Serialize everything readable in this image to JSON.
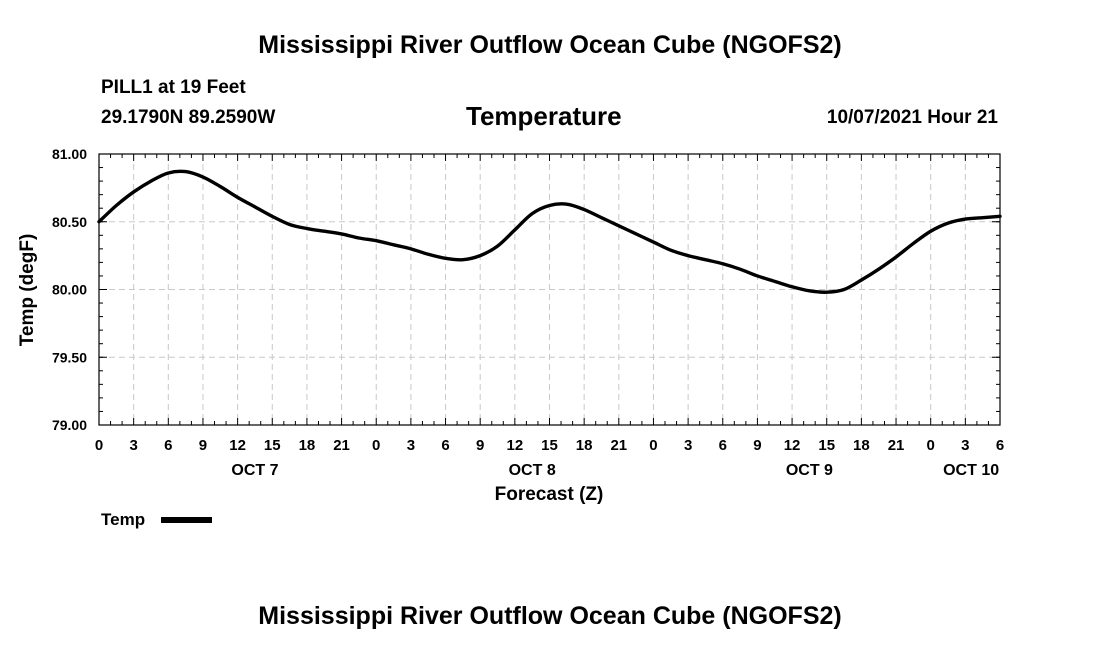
{
  "page": {
    "main_title": "Mississippi River Outflow Ocean Cube (NGOFS2)",
    "footer_title": "Mississippi River Outflow Ocean Cube (NGOFS2)",
    "station": "PILL1 at 19 Feet",
    "coords": "29.1790N  89.2590W",
    "datetime": "10/07/2021 Hour 21",
    "legend": {
      "label": "Temp"
    }
  },
  "colors": {
    "line": "#000000",
    "grid": "#c8c8c8",
    "axis": "#000000"
  },
  "chart_data": {
    "type": "line",
    "title": "Temperature",
    "xlabel": "Forecast (Z)",
    "ylabel": "Temp (degF)",
    "ylim": [
      79.0,
      81.0
    ],
    "yticks": [
      "79.00",
      "79.50",
      "80.00",
      "80.50",
      "81.00"
    ],
    "xlim": [
      0,
      78
    ],
    "xtick_labels": [
      "0",
      "3",
      "6",
      "9",
      "12",
      "15",
      "18",
      "21",
      "0",
      "3",
      "6",
      "9",
      "12",
      "15",
      "18",
      "21",
      "0",
      "3",
      "6",
      "9",
      "12",
      "15",
      "18",
      "21",
      "0",
      "3",
      "6"
    ],
    "day_labels": [
      {
        "label": "OCT 7",
        "hour": 13.5
      },
      {
        "label": "OCT 8",
        "hour": 37.5
      },
      {
        "label": "OCT 9",
        "hour": 61.5
      },
      {
        "label": "OCT 10",
        "hour": 75.5
      }
    ],
    "grid": true,
    "legend_position": "bottom-left",
    "series": [
      {
        "name": "Temp",
        "x": [
          0,
          1.5,
          3,
          4.5,
          6,
          7.5,
          9,
          10.5,
          12,
          13.5,
          15,
          16.5,
          18,
          19.5,
          21,
          22.5,
          24,
          25.5,
          27,
          28.5,
          30,
          31.5,
          33,
          34.5,
          36,
          37.5,
          39,
          40.5,
          42,
          43.5,
          45,
          46.5,
          48,
          49.5,
          51,
          52.5,
          54,
          55.5,
          57,
          58.5,
          60,
          61.5,
          63,
          64.5,
          66,
          67.5,
          69,
          70.5,
          72,
          73.5,
          75,
          76.5,
          78
        ],
        "values": [
          80.5,
          80.62,
          80.72,
          80.8,
          80.86,
          80.87,
          80.83,
          80.76,
          80.68,
          80.61,
          80.54,
          80.48,
          80.45,
          80.43,
          80.41,
          80.38,
          80.36,
          80.33,
          80.3,
          80.26,
          80.23,
          80.22,
          80.25,
          80.32,
          80.44,
          80.56,
          80.62,
          80.63,
          80.59,
          80.53,
          80.47,
          80.41,
          80.35,
          80.29,
          80.25,
          80.22,
          80.19,
          80.15,
          80.1,
          80.06,
          80.02,
          79.99,
          79.98,
          80.0,
          80.07,
          80.15,
          80.24,
          80.34,
          80.43,
          80.49,
          80.52,
          80.53,
          80.54
        ]
      }
    ]
  }
}
